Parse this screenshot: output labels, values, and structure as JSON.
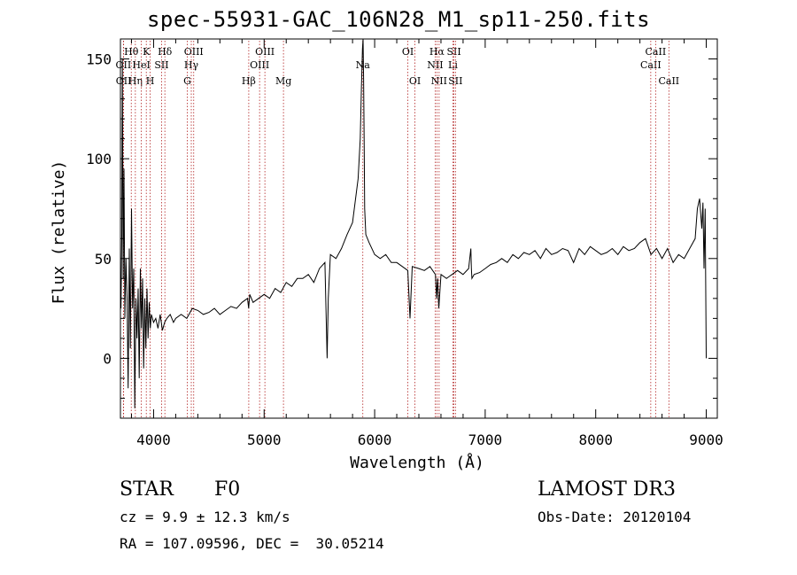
{
  "chart_data": {
    "type": "line",
    "title": "spec-55931-GAC_106N28_M1_sp11-250.fits",
    "xlabel": "Wavelength (Å)",
    "ylabel": "Flux (relative)",
    "xlim": [
      3700,
      9100
    ],
    "ylim": [
      -30,
      160
    ],
    "xticks": [
      4000,
      5000,
      6000,
      7000,
      8000,
      9000
    ],
    "xtick_labels": [
      "4000",
      "5000",
      "6000",
      "7000",
      "8000",
      "9000"
    ],
    "yticks": [
      0,
      50,
      100,
      150
    ],
    "ytick_labels": [
      "0",
      "50",
      "100",
      "150"
    ],
    "grid": false,
    "line_color": "#000000",
    "marker_color": "#b22222",
    "series": [
      {
        "name": "flux",
        "x": [
          3705,
          3712,
          3718,
          3725,
          3732,
          3740,
          3750,
          3760,
          3770,
          3780,
          3790,
          3800,
          3810,
          3820,
          3830,
          3840,
          3850,
          3860,
          3870,
          3880,
          3890,
          3900,
          3910,
          3920,
          3930,
          3940,
          3950,
          3960,
          3970,
          3980,
          4000,
          4020,
          4040,
          4060,
          4080,
          4100,
          4120,
          4150,
          4180,
          4200,
          4250,
          4300,
          4350,
          4400,
          4450,
          4500,
          4550,
          4600,
          4650,
          4700,
          4750,
          4800,
          4850,
          4860,
          4870,
          4900,
          4950,
          5000,
          5050,
          5100,
          5150,
          5200,
          5250,
          5300,
          5350,
          5400,
          5450,
          5500,
          5550,
          5570,
          5580,
          5600,
          5650,
          5700,
          5750,
          5800,
          5850,
          5870,
          5880,
          5890,
          5895,
          5900,
          5905,
          5910,
          5920,
          5950,
          6000,
          6050,
          6100,
          6150,
          6200,
          6250,
          6300,
          6320,
          6340,
          6400,
          6450,
          6500,
          6550,
          6560,
          6570,
          6580,
          6600,
          6650,
          6700,
          6750,
          6800,
          6850,
          6870,
          6875,
          6880,
          6900,
          6950,
          7000,
          7050,
          7100,
          7150,
          7200,
          7250,
          7300,
          7350,
          7400,
          7450,
          7500,
          7550,
          7600,
          7650,
          7700,
          7750,
          7800,
          7850,
          7900,
          7950,
          8000,
          8050,
          8100,
          8150,
          8200,
          8250,
          8300,
          8350,
          8400,
          8450,
          8500,
          8550,
          8600,
          8650,
          8700,
          8750,
          8800,
          8850,
          8900,
          8920,
          8940,
          8960,
          8970,
          8980,
          8990,
          9000
        ],
        "y": [
          25,
          60,
          150,
          40,
          95,
          20,
          50,
          30,
          -15,
          55,
          5,
          75,
          25,
          45,
          -25,
          30,
          10,
          35,
          -10,
          45,
          15,
          40,
          -5,
          30,
          5,
          35,
          10,
          28,
          15,
          22,
          18,
          20,
          15,
          22,
          14,
          18,
          20,
          22,
          18,
          20,
          22,
          20,
          25,
          24,
          22,
          23,
          25,
          22,
          24,
          26,
          25,
          28,
          30,
          25,
          32,
          28,
          30,
          32,
          30,
          35,
          33,
          38,
          36,
          40,
          40,
          42,
          38,
          45,
          48,
          0,
          30,
          52,
          50,
          55,
          62,
          68,
          90,
          110,
          135,
          155,
          160,
          140,
          110,
          75,
          62,
          58,
          52,
          50,
          52,
          48,
          48,
          46,
          44,
          20,
          46,
          45,
          44,
          46,
          42,
          30,
          40,
          25,
          42,
          40,
          42,
          44,
          42,
          45,
          55,
          45,
          40,
          42,
          43,
          45,
          47,
          48,
          50,
          48,
          52,
          50,
          53,
          52,
          54,
          50,
          55,
          52,
          53,
          55,
          54,
          48,
          55,
          52,
          56,
          54,
          52,
          53,
          55,
          52,
          56,
          54,
          55,
          58,
          60,
          52,
          55,
          50,
          55,
          48,
          52,
          50,
          55,
          60,
          75,
          80,
          65,
          78,
          45,
          75,
          0
        ]
      }
    ],
    "line_markers": [
      {
        "label": "OII",
        "x": 3727,
        "row": 2
      },
      {
        "label": "OII",
        "x": 3729,
        "row": 3
      },
      {
        "label": "Hθ",
        "x": 3798,
        "row": 1
      },
      {
        "label": "Hη",
        "x": 3835,
        "row": 3
      },
      {
        "label": "HeI",
        "x": 3889,
        "row": 2
      },
      {
        "label": "K",
        "x": 3934,
        "row": 1
      },
      {
        "label": "H",
        "x": 3969,
        "row": 3
      },
      {
        "label": "SII",
        "x": 4072,
        "row": 2
      },
      {
        "label": "Hδ",
        "x": 4102,
        "row": 1
      },
      {
        "label": "OIII",
        "x": 4363,
        "row": 1
      },
      {
        "label": "Hγ",
        "x": 4341,
        "row": 2
      },
      {
        "label": "G",
        "x": 4305,
        "row": 3
      },
      {
        "label": "Hβ",
        "x": 4861,
        "row": 3
      },
      {
        "label": "OIII",
        "x": 4959,
        "row": 2
      },
      {
        "label": "OIII",
        "x": 5007,
        "row": 1
      },
      {
        "label": "Mg",
        "x": 5175,
        "row": 3
      },
      {
        "label": "Na",
        "x": 5893,
        "row": 2
      },
      {
        "label": "OI",
        "x": 6300,
        "row": 1
      },
      {
        "label": "OI",
        "x": 6364,
        "row": 3
      },
      {
        "label": "NII",
        "x": 6548,
        "row": 2
      },
      {
        "label": "Hα",
        "x": 6563,
        "row": 1
      },
      {
        "label": "NII",
        "x": 6583,
        "row": 3
      },
      {
        "label": "Li",
        "x": 6708,
        "row": 2
      },
      {
        "label": "SII",
        "x": 6717,
        "row": 1
      },
      {
        "label": "SII",
        "x": 6731,
        "row": 3
      },
      {
        "label": "CaII",
        "x": 8498,
        "row": 2
      },
      {
        "label": "CaII",
        "x": 8542,
        "row": 1
      },
      {
        "label": "CaII",
        "x": 8662,
        "row": 3
      }
    ]
  },
  "info": {
    "object_class": "STAR",
    "subclass": "F0",
    "survey": "LAMOST DR3",
    "redshift_line": "cz = 9.9 ± 12.3 km/s",
    "obs_date_line": "Obs-Date: 20120104",
    "coords_line": "RA = 107.09596, DEC =  30.05214"
  }
}
